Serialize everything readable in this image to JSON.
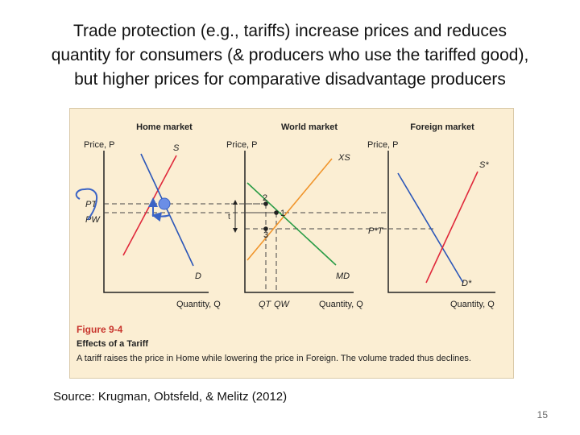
{
  "slide": {
    "title_lines": [
      "Trade protection (e.g., tariffs) increase prices and reduces",
      "quantity for consumers (& producers who use the tariffed good),",
      "but higher prices for comparative disadvantage producers"
    ],
    "source": "Source: Krugman, Obtsfeld, & Melitz (2012)",
    "page_number": "15"
  },
  "figure": {
    "number": "Figure 9-4",
    "caption_title": "Effects of a Tariff",
    "caption_text": "A tariff raises the price in Home while lowering the price in Foreign. The volume traded thus declines.",
    "colors": {
      "supply": "#e0293b",
      "demand": "#2b56b8",
      "export_supply": "#f0952c",
      "import_demand": "#2a9c46",
      "figure_title": "#c8352d",
      "background": "#fbeed3"
    },
    "panels": {
      "home": {
        "title": "Home market",
        "y_label": "Price, P",
        "x_label": "Quantity, Q",
        "supply_label": "S",
        "demand_label": "D"
      },
      "world": {
        "title": "World market",
        "y_label": "Price, P",
        "x_label": "Quantity, Q",
        "xs_label": "XS",
        "md_label": "MD",
        "tariff_label": "t",
        "point_1": "1",
        "point_2": "2",
        "point_3": "3",
        "qt_label": "QT",
        "qw_label": "QW"
      },
      "foreign": {
        "title": "Foreign market",
        "y_label": "Price, P",
        "x_label": "Quantity, Q",
        "supply_label": "S*",
        "demand_label": "D*",
        "pt_star_label": "P*T"
      }
    },
    "price_labels": {
      "pt": "PT",
      "pw": "PW"
    }
  }
}
